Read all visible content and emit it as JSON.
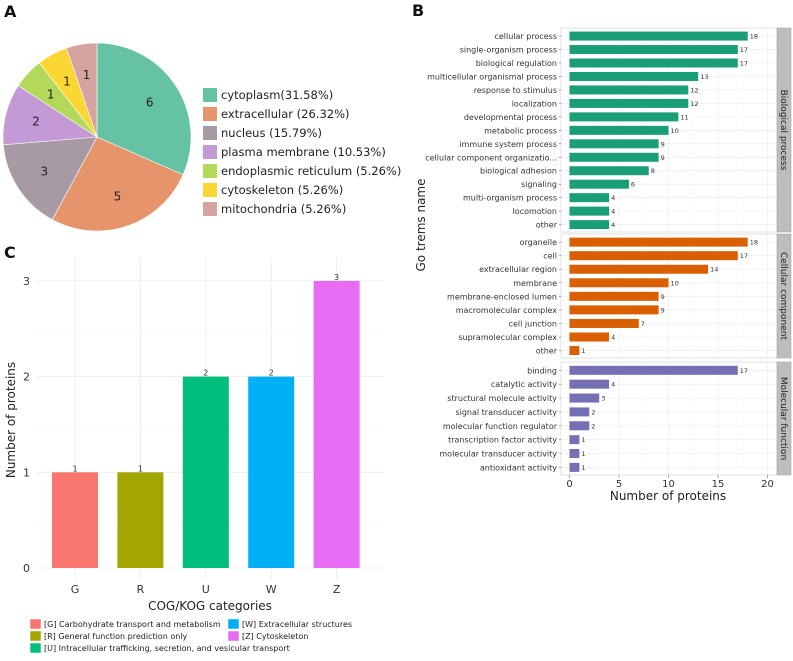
{
  "panels": {
    "a": "A",
    "b": "B",
    "c": "C"
  },
  "chart_data": [
    {
      "panel": "A",
      "type": "pie",
      "slices": [
        {
          "label": "cytoplasm(31.58%)",
          "value": 6,
          "color": "#66c2a4"
        },
        {
          "label": "extracellular (26.32%)",
          "value": 5,
          "color": "#e5946b"
        },
        {
          "label": "nucleus (15.79%)",
          "value": 3,
          "color": "#a89aa5"
        },
        {
          "label": "plasma membrane (10.53%)",
          "value": 2,
          "color": "#c39ad6"
        },
        {
          "label": "endoplasmic reticulum (5.26%)",
          "value": 1,
          "color": "#b4d95a"
        },
        {
          "label": "cytoskeleton (5.26%)",
          "value": 1,
          "color": "#fad733"
        },
        {
          "label": "mitochondria (5.26%)",
          "value": 1,
          "color": "#d7a3a0"
        }
      ],
      "legend_position": "right"
    },
    {
      "panel": "B",
      "type": "bar",
      "orientation": "horizontal",
      "xlabel": "Number of proteins",
      "ylabel": "Go trems name",
      "xlim": [
        0,
        20
      ],
      "xticks": [
        0,
        5,
        10,
        15,
        20
      ],
      "facets": [
        {
          "name": "Biological process",
          "color": "#1a9e77",
          "categories": [
            "cellular process",
            "single-organism process",
            "biological regulation",
            "multicellular organismal process",
            "response to stimulus",
            "localization",
            "developmental process",
            "metabolic process",
            "immune system process",
            "cellular component organizatio...",
            "biological adhesion",
            "signaling",
            "multi-organism process",
            "locomotion",
            "other"
          ],
          "values": [
            18,
            17,
            17,
            13,
            12,
            12,
            11,
            10,
            9,
            9,
            8,
            6,
            4,
            4,
            4
          ]
        },
        {
          "name": "Cellular component",
          "color": "#d95f02",
          "categories": [
            "organelle",
            "cell",
            "extracellular region",
            "membrane",
            "membrane-enclosed lumen",
            "macromolecular complex",
            "cell junction",
            "supramolecular complex",
            "other"
          ],
          "values": [
            18,
            17,
            14,
            10,
            9,
            9,
            7,
            4,
            1
          ]
        },
        {
          "name": "Molecular function",
          "color": "#7570b3",
          "categories": [
            "binding",
            "catalytic activity",
            "structural molecule activity",
            "signal transducer activity",
            "molecular function regulator",
            "transcription factor activity",
            "molecular transducer activity",
            "antioxidant activity"
          ],
          "values": [
            17,
            4,
            3,
            2,
            2,
            1,
            1,
            1
          ]
        }
      ]
    },
    {
      "panel": "C",
      "type": "bar",
      "categories": [
        "G",
        "R",
        "U",
        "W",
        "Z"
      ],
      "values": [
        1,
        1,
        2,
        2,
        3
      ],
      "colors": [
        "#f8766d",
        "#a3a500",
        "#00bf7d",
        "#00b0f6",
        "#e76bf3"
      ],
      "xlabel": "COG/KOG categories",
      "ylabel": "Number of proteins",
      "ylim": [
        0,
        3
      ],
      "yticks": [
        0,
        1,
        2,
        3
      ],
      "legend": [
        {
          "label": "[G] Carbohydrate transport and metabolism",
          "color": "#f8766d"
        },
        {
          "label": "[R] General function prediction only",
          "color": "#a3a500"
        },
        {
          "label": "[U] Intracellular trafficking, secretion, and vesicular transport",
          "color": "#00bf7d"
        },
        {
          "label": "[W] Extracellular structures",
          "color": "#00b0f6"
        },
        {
          "label": "[Z] Cytoskeleton",
          "color": "#e76bf3"
        }
      ],
      "legend_position": "bottom"
    }
  ]
}
